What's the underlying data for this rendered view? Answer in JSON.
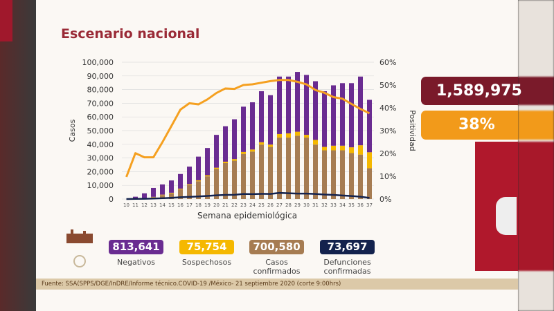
{
  "title": "Escenario nacional",
  "totals": {
    "total_people": "1,589,975",
    "positivity": "38%"
  },
  "kpis": [
    {
      "value": "813,641",
      "label": "Negativos",
      "color": "#6a2c91"
    },
    {
      "value": "75,754",
      "label": "Sospechosos",
      "color": "#f5b800"
    },
    {
      "value": "700,580",
      "label": "Casos confirmados",
      "color": "#a67c52"
    },
    {
      "value": "73,697",
      "label": "Defunciones confirmadas",
      "color": "#13224d"
    }
  ],
  "source": "Fuente: SSA(SPPS/DGE/InDRE/Informe técnico.COVID-19 /México- 21 septiembre 2020 (corte 9:00hrs)",
  "chart_data": {
    "type": "bar",
    "stacked": true,
    "xlabel": "Semana epidemiológica",
    "ylabel": "Casos",
    "y2label": "Positividad",
    "ylim": [
      0,
      100000
    ],
    "y2lim": [
      0,
      60
    ],
    "yticks": [
      "0",
      "10,000",
      "20,000",
      "30,000",
      "40,000",
      "50,000",
      "60,000",
      "70,000",
      "80,000",
      "90,000",
      "100,000"
    ],
    "y2ticks": [
      "0%",
      "10%",
      "20%",
      "30%",
      "40%",
      "50%",
      "60%"
    ],
    "grid": true,
    "categories": [
      "10",
      "11",
      "12",
      "13",
      "14",
      "15",
      "16",
      "17",
      "18",
      "19",
      "20",
      "21",
      "22",
      "23",
      "24",
      "25",
      "26",
      "27",
      "28",
      "29",
      "30",
      "31",
      "32",
      "33",
      "34",
      "35",
      "36",
      "37"
    ],
    "series": [
      {
        "name": "Casos confirmados",
        "kind": "bar",
        "color": "#a67c52",
        "values": [
          0,
          0,
          300,
          1400,
          2900,
          4200,
          7100,
          10200,
          13000,
          16600,
          22000,
          26300,
          28000,
          33000,
          34700,
          39800,
          38100,
          44900,
          44900,
          46300,
          44900,
          39800,
          35600,
          35600,
          35600,
          33600,
          32500,
          22500
        ]
      },
      {
        "name": "Sospechosos",
        "kind": "bar",
        "color": "#f5b800",
        "values": [
          0,
          0,
          100,
          200,
          300,
          400,
          500,
          600,
          700,
          800,
          900,
          1000,
          1200,
          1400,
          1500,
          1700,
          1700,
          2600,
          3100,
          2900,
          2000,
          3400,
          2500,
          3400,
          3400,
          4200,
          6800,
          11700
        ]
      },
      {
        "name": "Negativos",
        "kind": "bar",
        "color": "#6a2c91",
        "values": [
          0,
          1700,
          3800,
          6500,
          7500,
          9000,
          10700,
          12900,
          17300,
          19900,
          24000,
          25900,
          29100,
          33100,
          34500,
          37300,
          36100,
          42000,
          41500,
          43700,
          43800,
          42900,
          40700,
          44100,
          45700,
          46900,
          50200,
          38300
        ]
      },
      {
        "name": "Defunciones confirmadas",
        "kind": "line",
        "color": "#13224d",
        "values": [
          0,
          100,
          200,
          400,
          600,
          900,
          1300,
          1600,
          1900,
          2300,
          2700,
          3000,
          3100,
          3700,
          3600,
          3800,
          3700,
          4500,
          4200,
          4000,
          4000,
          3700,
          3300,
          3000,
          2600,
          2200,
          1700,
          800
        ]
      },
      {
        "name": "Positividad",
        "kind": "line",
        "axis": "right",
        "color": "#f5a020",
        "values": [
          9.7,
          20.1,
          18.3,
          18.3,
          24.9,
          32,
          39.2,
          42,
          41.5,
          43.7,
          46.5,
          48.5,
          48.3,
          50,
          50.3,
          51,
          51.7,
          52.2,
          52.2,
          51.4,
          50.3,
          47.8,
          46.6,
          44.7,
          44,
          41.7,
          39.5,
          37.6
        ]
      }
    ]
  }
}
